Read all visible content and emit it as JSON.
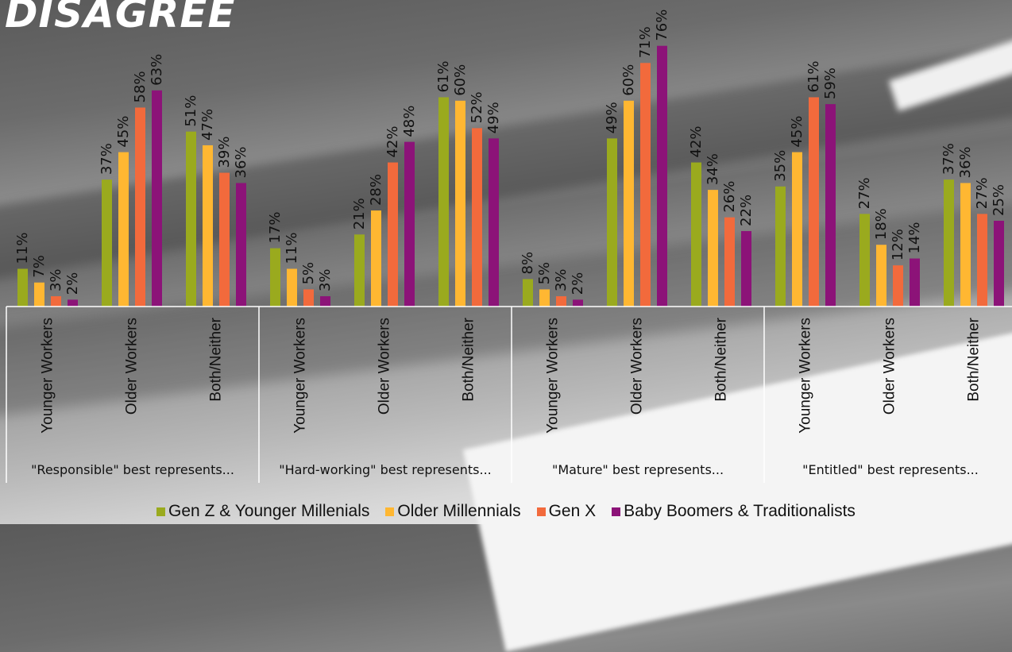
{
  "title": "DISAGREE",
  "colors": {
    "gen_z": "#9aaa1e",
    "older_millennials": "#ffb732",
    "gen_x": "#f26a3c",
    "boomers": "#8c1378"
  },
  "chart_data": {
    "type": "bar",
    "groups": [
      {
        "label": "\"Responsible\" best represents...",
        "categories": [
          "Younger Workers",
          "Older Workers",
          "Both/Neither"
        ]
      },
      {
        "label": "\"Hard-working\" best represents...",
        "categories": [
          "Younger Workers",
          "Older Workers",
          "Both/Neither"
        ]
      },
      {
        "label": "\"Mature\" best represents...",
        "categories": [
          "Younger Workers",
          "Older Workers",
          "Both/Neither"
        ]
      },
      {
        "label": "\"Entitled\" best represents...",
        "categories": [
          "Younger Workers",
          "Older Workers",
          "Both/Neither"
        ]
      }
    ],
    "series": [
      {
        "name": "Gen Z & Younger Millenials",
        "color": "#9aaa1e",
        "values": [
          11,
          37,
          51,
          17,
          21,
          61,
          8,
          49,
          42,
          35,
          27,
          37
        ]
      },
      {
        "name": "Older Millennials",
        "color": "#ffb732",
        "values": [
          7,
          45,
          47,
          11,
          28,
          60,
          5,
          60,
          34,
          45,
          18,
          36
        ]
      },
      {
        "name": "Gen X",
        "color": "#f26a3c",
        "values": [
          3,
          58,
          39,
          5,
          42,
          52,
          3,
          71,
          26,
          61,
          12,
          27
        ]
      },
      {
        "name": "Baby Boomers & Traditionalists",
        "color": "#8c1378",
        "values": [
          2,
          63,
          36,
          3,
          48,
          49,
          2,
          76,
          22,
          59,
          14,
          25
        ]
      }
    ],
    "value_suffix": "%",
    "ylim": [
      0,
      80
    ],
    "legend_position": "bottom",
    "grid": false
  }
}
